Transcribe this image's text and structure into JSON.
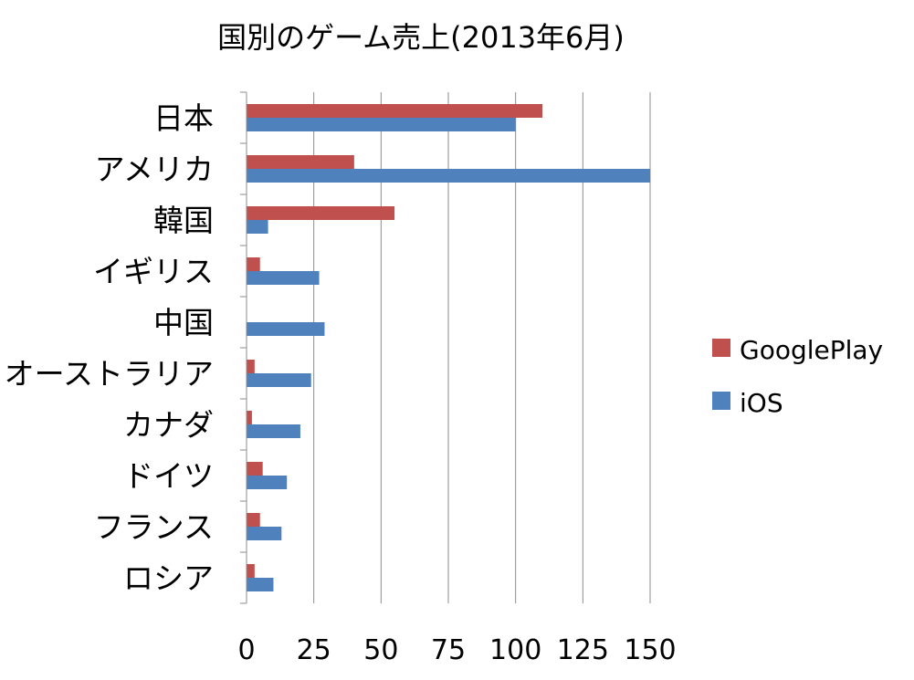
{
  "chart_data": {
    "type": "bar",
    "orientation": "horizontal",
    "title": "国別のゲーム売上(2013年6月)",
    "xlabel": "",
    "ylabel": "",
    "categories": [
      "日本",
      "アメリカ",
      "韓国",
      "イギリス",
      "中国",
      "オーストラリア",
      "カナダ",
      "ドイツ",
      "フランス",
      "ロシア"
    ],
    "series": [
      {
        "name": "GooglePlay",
        "color": "#C0504D",
        "values": [
          110,
          40,
          55,
          5,
          0,
          3,
          2,
          6,
          5,
          3
        ]
      },
      {
        "name": "iOS",
        "color": "#4F81BD",
        "values": [
          100,
          150,
          8,
          27,
          29,
          24,
          20,
          15,
          13,
          10
        ]
      }
    ],
    "xlim": [
      0,
      150
    ],
    "xticks": [
      0,
      25,
      50,
      75,
      100,
      125,
      150
    ],
    "grid": true,
    "legend_position": "right"
  }
}
